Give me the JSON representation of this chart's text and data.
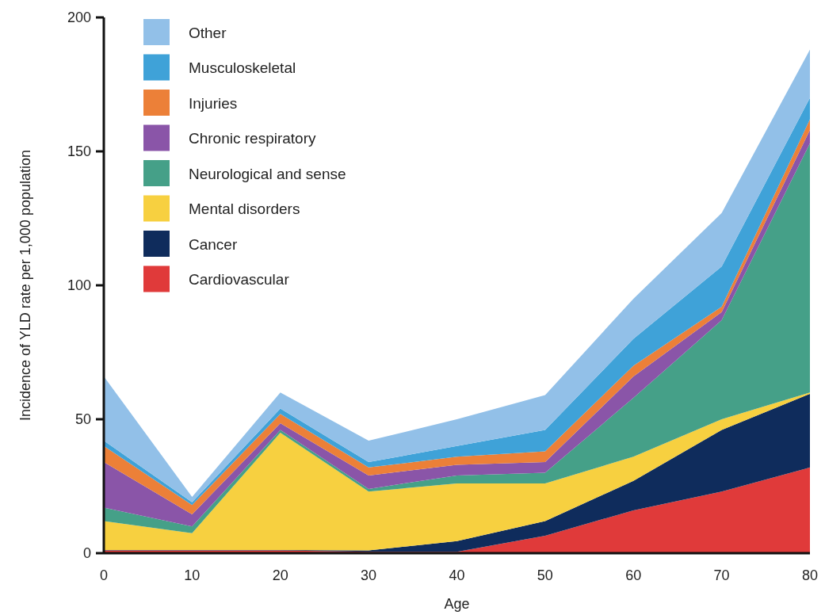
{
  "chart_data": {
    "type": "area",
    "stacked": true,
    "xlabel": "Age",
    "ylabel": "Incidence of YLD rate per 1,000 population",
    "x": [
      0,
      10,
      20,
      30,
      40,
      50,
      60,
      70,
      80
    ],
    "xlim": [
      0,
      80
    ],
    "xticks": [
      0,
      10,
      20,
      30,
      40,
      50,
      60,
      70,
      80
    ],
    "ylim": [
      0,
      200
    ],
    "yticks": [
      0,
      50,
      100,
      150,
      200
    ],
    "legend": "top left",
    "grid": false,
    "series": [
      {
        "name": "Cardiovascular",
        "color": "#e03a3a",
        "values": [
          1,
          1,
          1,
          0.5,
          0.5,
          6.5,
          16,
          23,
          32
        ]
      },
      {
        "name": "Cancer",
        "color": "#0f2c5c",
        "values": [
          0.2,
          0.2,
          0.2,
          0.5,
          4,
          5.5,
          11,
          23,
          27.5
        ]
      },
      {
        "name": "Mental disorders",
        "color": "#f7d040",
        "values": [
          10.8,
          6.3,
          43.8,
          22,
          21.5,
          14,
          9,
          4,
          0.5
        ]
      },
      {
        "name": "Neurological and sense",
        "color": "#45a088",
        "values": [
          5,
          2.5,
          1,
          1,
          3,
          4,
          22,
          37,
          93
        ]
      },
      {
        "name": "Chronic respiratory",
        "color": "#8a55a8",
        "values": [
          17,
          4.5,
          2.5,
          5,
          4,
          4,
          8,
          3,
          5
        ]
      },
      {
        "name": "Injuries",
        "color": "#ec8038",
        "values": [
          6,
          3.5,
          3.5,
          3,
          3,
          4,
          4,
          2,
          4
        ]
      },
      {
        "name": "Musculoskeletal",
        "color": "#3fa2d8",
        "values": [
          2,
          1,
          2,
          2,
          4,
          8,
          10,
          15,
          8
        ]
      },
      {
        "name": "Other",
        "color": "#92c0e8",
        "values": [
          24,
          2,
          6,
          8,
          10,
          13,
          15,
          20,
          18
        ]
      }
    ]
  }
}
